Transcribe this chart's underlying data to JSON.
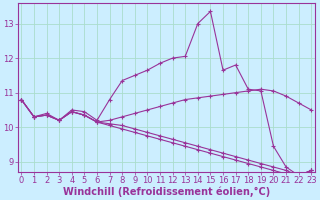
{
  "xlabel": "Windchill (Refroidissement éolien,°C)",
  "background_color": "#cceeff",
  "grid_color": "#aaddcc",
  "line_color": "#993399",
  "xlim": [
    -0.3,
    23.3
  ],
  "ylim": [
    8.7,
    13.6
  ],
  "xticks": [
    0,
    1,
    2,
    3,
    4,
    5,
    6,
    7,
    8,
    9,
    10,
    11,
    12,
    13,
    14,
    15,
    16,
    17,
    18,
    19,
    20,
    21,
    22,
    23
  ],
  "yticks": [
    9,
    10,
    11,
    12,
    13
  ],
  "lines": [
    {
      "x": [
        0,
        1,
        2,
        3,
        4,
        5,
        6,
        7,
        8,
        9,
        10,
        11,
        12,
        13,
        14,
        15,
        16,
        17,
        18,
        19,
        20,
        21,
        22,
        23
      ],
      "y": [
        10.8,
        10.3,
        10.4,
        10.2,
        10.5,
        10.45,
        10.2,
        10.8,
        11.35,
        11.5,
        11.65,
        11.85,
        12.0,
        12.05,
        13.0,
        13.35,
        11.65,
        11.8,
        11.1,
        11.05,
        9.45,
        8.85,
        8.6,
        8.75
      ],
      "marker": "+"
    },
    {
      "x": [
        0,
        1,
        2,
        3,
        4,
        5,
        6,
        7,
        8,
        9,
        10,
        11,
        12,
        13,
        14,
        15,
        16,
        17,
        18,
        19,
        20,
        21,
        22,
        23
      ],
      "y": [
        10.8,
        10.3,
        10.35,
        10.2,
        10.45,
        10.35,
        10.15,
        10.2,
        10.3,
        10.4,
        10.5,
        10.6,
        10.7,
        10.8,
        10.85,
        10.9,
        10.95,
        11.0,
        11.05,
        11.1,
        11.05,
        10.9,
        10.7,
        10.5
      ],
      "marker": "+"
    },
    {
      "x": [
        0,
        1,
        2,
        3,
        4,
        5,
        6,
        7,
        8,
        9,
        10,
        11,
        12,
        13,
        14,
        15,
        16,
        17,
        18,
        19,
        20,
        21,
        22,
        23
      ],
      "y": [
        10.8,
        10.3,
        10.35,
        10.2,
        10.45,
        10.35,
        10.15,
        10.1,
        10.05,
        9.95,
        9.85,
        9.75,
        9.65,
        9.55,
        9.45,
        9.35,
        9.25,
        9.15,
        9.05,
        8.95,
        8.85,
        8.75,
        8.6,
        8.75
      ],
      "marker": "+"
    },
    {
      "x": [
        0,
        1,
        2,
        3,
        4,
        5,
        6,
        7,
        8,
        9,
        10,
        11,
        12,
        13,
        14,
        15,
        16,
        17,
        18,
        19,
        20,
        21,
        22,
        23
      ],
      "y": [
        10.8,
        10.3,
        10.35,
        10.2,
        10.45,
        10.35,
        10.15,
        10.05,
        9.95,
        9.85,
        9.75,
        9.65,
        9.55,
        9.45,
        9.35,
        9.25,
        9.15,
        9.05,
        8.95,
        8.85,
        8.75,
        8.65,
        8.6,
        8.75
      ],
      "marker": "+"
    }
  ],
  "font_color": "#993399",
  "tick_fontsize": 6,
  "label_fontsize": 7
}
